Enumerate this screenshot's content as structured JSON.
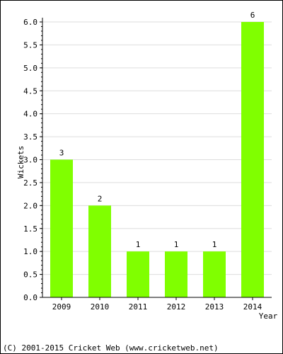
{
  "chart_data": {
    "type": "bar",
    "categories": [
      "2009",
      "2010",
      "2011",
      "2012",
      "2013",
      "2014"
    ],
    "values": [
      3,
      2,
      1,
      1,
      1,
      6
    ],
    "data_labels": [
      "3",
      "2",
      "1",
      "1",
      "1",
      "6"
    ],
    "title": "",
    "xlabel": "Year",
    "ylabel": "Wickets",
    "ylim": [
      0,
      6
    ],
    "yticks": [
      "0.0",
      "0.5",
      "1.0",
      "1.5",
      "2.0",
      "2.5",
      "3.0",
      "3.5",
      "4.0",
      "4.5",
      "5.0",
      "5.5",
      "6.0"
    ],
    "grid": true,
    "bar_color": "#80ff00",
    "grid_color": "#dddddd"
  },
  "footer": {
    "copyright": "(C) 2001-2015 Cricket Web (www.cricketweb.net)"
  }
}
